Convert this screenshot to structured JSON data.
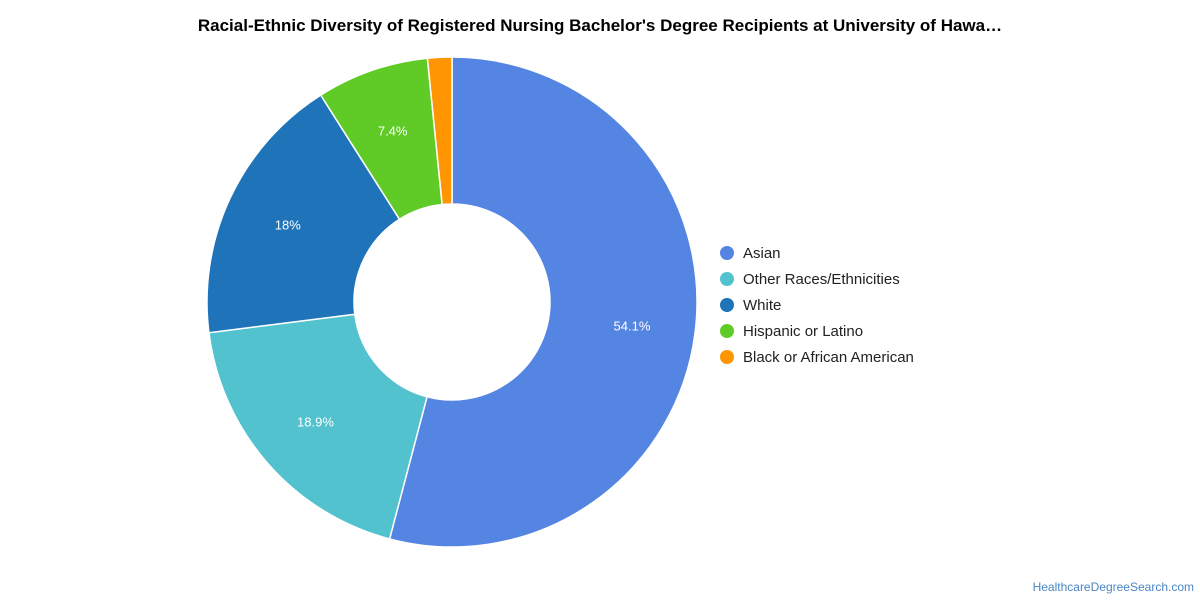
{
  "chart_data": {
    "type": "pie",
    "title": "Racial-Ethnic Diversity of Registered Nursing Bachelor's Degree Recipients at University of Hawa…",
    "legend_position": "right",
    "series": [
      {
        "name": "Asian",
        "value": 54.1,
        "label": "54.1%",
        "color": "#5585e2"
      },
      {
        "name": "Other Races/Ethnicities",
        "value": 18.9,
        "label": "18.9%",
        "color": "#52c2ce"
      },
      {
        "name": "White",
        "value": 18.0,
        "label": "18%",
        "color": "#1f73b9"
      },
      {
        "name": "Hispanic or Latino",
        "value": 7.4,
        "label": "7.4%",
        "color": "#60cb27"
      },
      {
        "name": "Black or African American",
        "value": 1.6,
        "label": "",
        "color": "#ff9500"
      }
    ]
  },
  "footer": {
    "source": "HealthcareDegreeSearch.com"
  }
}
